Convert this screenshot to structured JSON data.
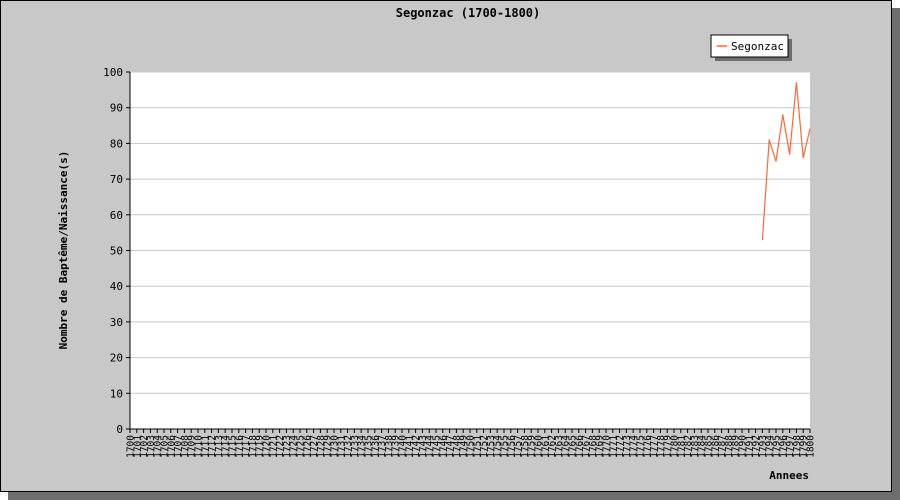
{
  "chart_data": {
    "type": "line",
    "title": "Segonzac (1700-1800)",
    "xlabel": "Annees",
    "ylabel": "Nombre de Baptême/Naissance(s)",
    "xlim": [
      1700,
      1800
    ],
    "ylim": [
      0,
      100
    ],
    "yticks": [
      0,
      10,
      20,
      30,
      40,
      50,
      60,
      70,
      80,
      90,
      100
    ],
    "grid": true,
    "legend_position": "top-right",
    "series": [
      {
        "name": "Segonzac",
        "color": "#ff6633",
        "x": [
          1793,
          1794,
          1795,
          1796,
          1797,
          1798,
          1799,
          1800
        ],
        "y": [
          53,
          81,
          75,
          88,
          77,
          97,
          76,
          84
        ]
      }
    ]
  }
}
